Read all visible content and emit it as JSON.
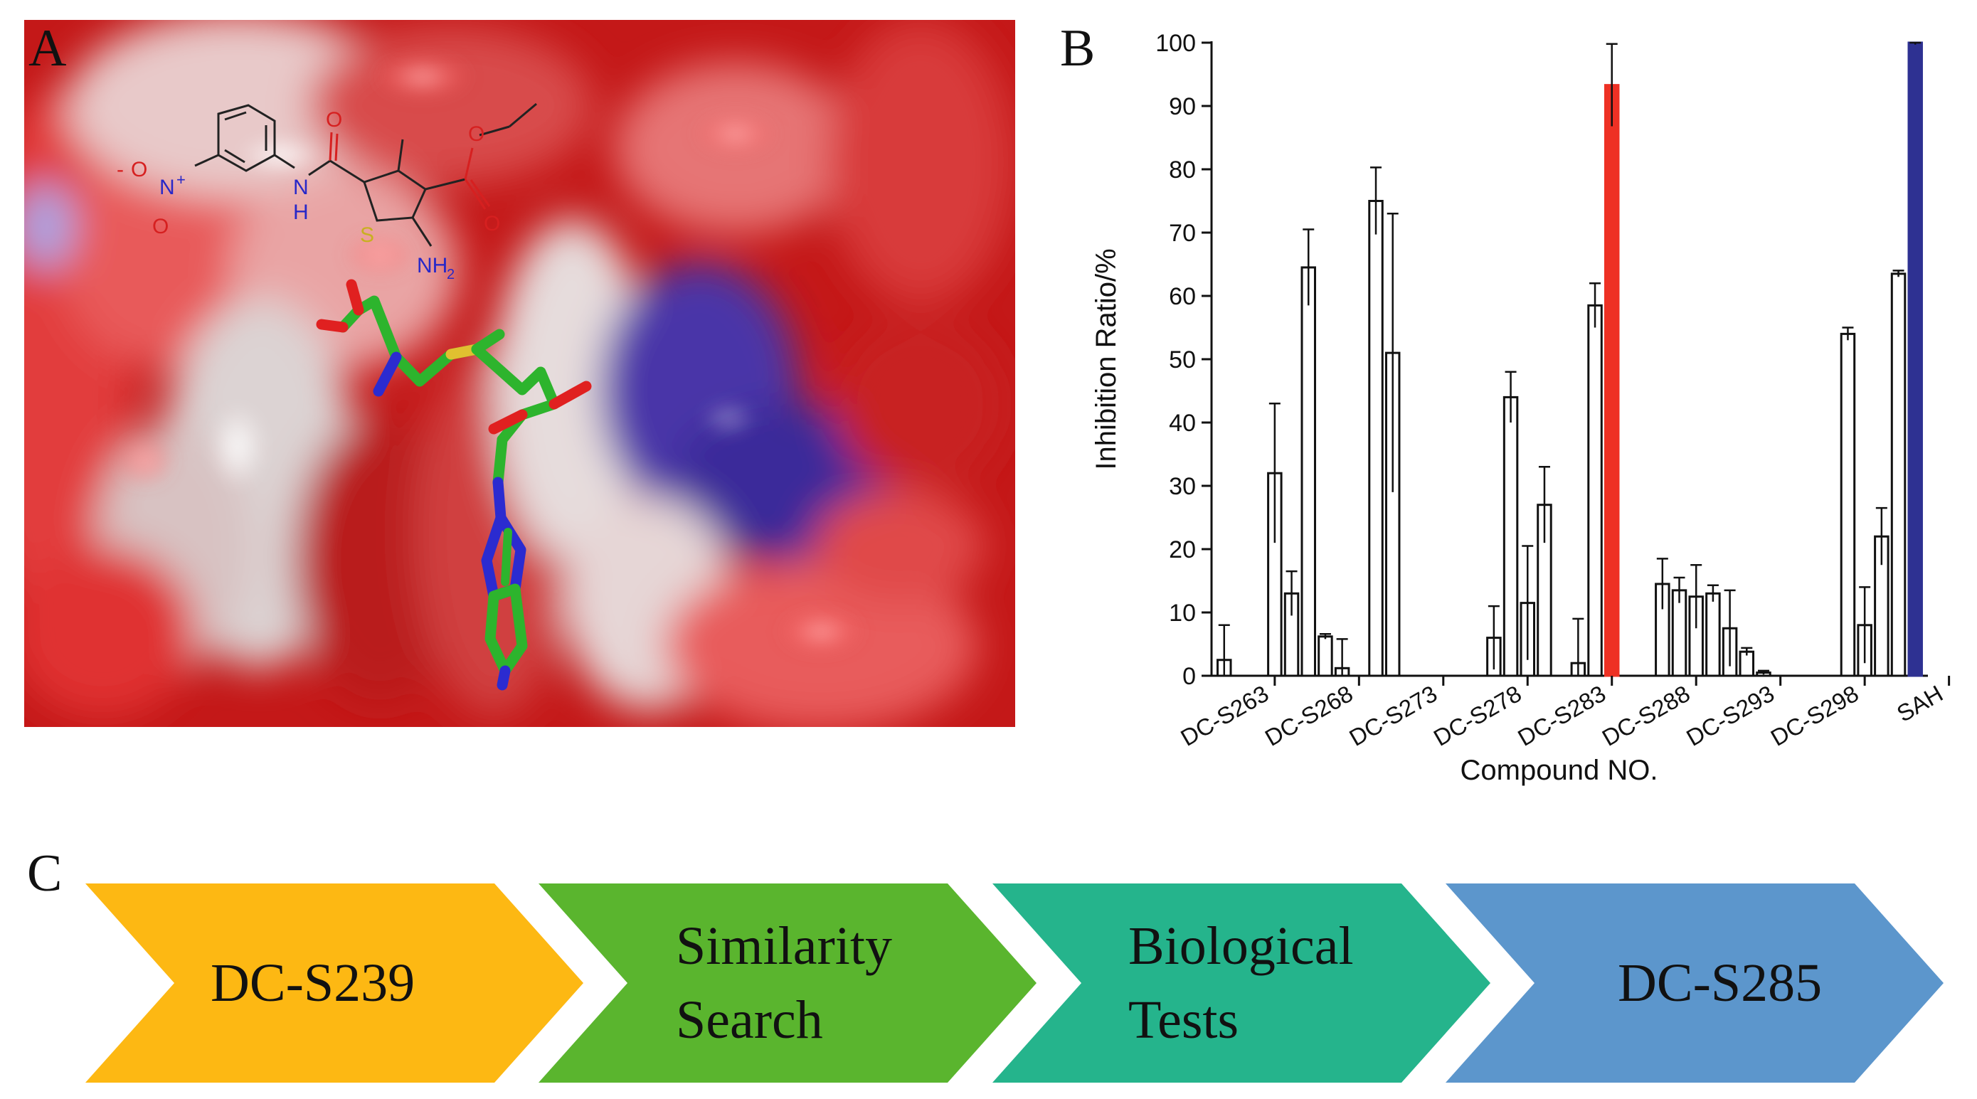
{
  "panels": {
    "a_letter": "A",
    "b_letter": "B",
    "c_letter": "C"
  },
  "molecule": {
    "nitro_minus": "-",
    "nitro_O_top": "O",
    "nitro_N": "N",
    "nitro_plus": "+",
    "nitro_O_bottom": "O",
    "amide_O": "O",
    "amide_NH": "N",
    "amide_H": "H",
    "ester_O1": "O",
    "ester_O2": "O",
    "thiophene_S": "S",
    "amine_NH2": "NH",
    "amine_sub": "2"
  },
  "colors": {
    "open_bar": "#ffffff",
    "highlight_bar": "#ee3124",
    "reference_bar": "#2e3192",
    "arrow_1": "#fdb813",
    "arrow_2": "#5ab52e",
    "arrow_3": "#25b48c",
    "arrow_4": "#5c96cc"
  },
  "chart_data": {
    "type": "bar",
    "ylabel": "Inhibition Ratio/%",
    "xlabel": "Compound NO.",
    "ylim": [
      0,
      100
    ],
    "yticks": [
      0,
      10,
      20,
      30,
      40,
      50,
      60,
      70,
      80,
      90,
      100
    ],
    "tick_labels": [
      "DC-S263",
      "DC-S268",
      "DC-S273",
      "DC-S278",
      "DC-S283",
      "DC-S288",
      "DC-S293",
      "DC-S298",
      "SAH"
    ],
    "grid": false,
    "bars": [
      {
        "value": 2.5,
        "error": 5.5,
        "style": "open"
      },
      {
        "value": 0,
        "error": 0,
        "style": "open"
      },
      {
        "value": 0,
        "error": 0,
        "style": "open"
      },
      {
        "value": 32,
        "error": 11,
        "style": "open"
      },
      {
        "value": 13,
        "error": 3.5,
        "style": "open"
      },
      {
        "value": 64.5,
        "error": 6,
        "style": "open"
      },
      {
        "value": 6.2,
        "error": 0.4,
        "style": "open"
      },
      {
        "value": 1.2,
        "error": 4.6,
        "style": "open"
      },
      {
        "value": 0,
        "error": 0,
        "style": "open"
      },
      {
        "value": 75,
        "error": 5.3,
        "style": "open"
      },
      {
        "value": 51,
        "error": 22,
        "style": "open"
      },
      {
        "value": 0,
        "error": 0,
        "style": "open"
      },
      {
        "value": 0,
        "error": 0,
        "style": "open"
      },
      {
        "value": 0,
        "error": 0,
        "style": "open"
      },
      {
        "value": 0,
        "error": 0,
        "style": "open"
      },
      {
        "value": 0,
        "error": 0,
        "style": "open"
      },
      {
        "value": 6,
        "error": 5,
        "style": "open"
      },
      {
        "value": 44,
        "error": 4,
        "style": "open"
      },
      {
        "value": 11.5,
        "error": 9,
        "style": "open"
      },
      {
        "value": 27,
        "error": 6,
        "style": "open"
      },
      {
        "value": 0,
        "error": 0,
        "style": "open"
      },
      {
        "value": 2,
        "error": 7,
        "style": "open"
      },
      {
        "value": 58.5,
        "error": 3.5,
        "style": "open"
      },
      {
        "value": 93.3,
        "error": 6.5,
        "style": "highlight"
      },
      {
        "value": 0,
        "error": 0,
        "style": "open"
      },
      {
        "value": 0,
        "error": 0,
        "style": "open"
      },
      {
        "value": 14.5,
        "error": 4,
        "style": "open"
      },
      {
        "value": 13.5,
        "error": 2,
        "style": "open"
      },
      {
        "value": 12.5,
        "error": 5,
        "style": "open"
      },
      {
        "value": 13,
        "error": 1.3,
        "style": "open"
      },
      {
        "value": 7.5,
        "error": 6,
        "style": "open"
      },
      {
        "value": 3.8,
        "error": 0.6,
        "style": "open"
      },
      {
        "value": 0.5,
        "error": 0.3,
        "style": "open"
      },
      {
        "value": 0,
        "error": 0,
        "style": "open"
      },
      {
        "value": 0,
        "error": 0,
        "style": "open"
      },
      {
        "value": 0,
        "error": 0,
        "style": "open"
      },
      {
        "value": 0,
        "error": 0,
        "style": "open"
      },
      {
        "value": 54,
        "error": 1,
        "style": "open"
      },
      {
        "value": 8,
        "error": 6,
        "style": "open"
      },
      {
        "value": 22,
        "error": 4.5,
        "style": "open"
      },
      {
        "value": 63.5,
        "error": 0.5,
        "style": "open"
      },
      {
        "value": 100,
        "error": 0.3,
        "style": "reference"
      }
    ]
  },
  "workflow": {
    "steps": [
      {
        "lines": [
          "DC-S239"
        ]
      },
      {
        "lines": [
          "Similarity",
          "Search"
        ]
      },
      {
        "lines": [
          "Biological",
          "Tests"
        ]
      },
      {
        "lines": [
          "DC-S285"
        ]
      }
    ]
  }
}
